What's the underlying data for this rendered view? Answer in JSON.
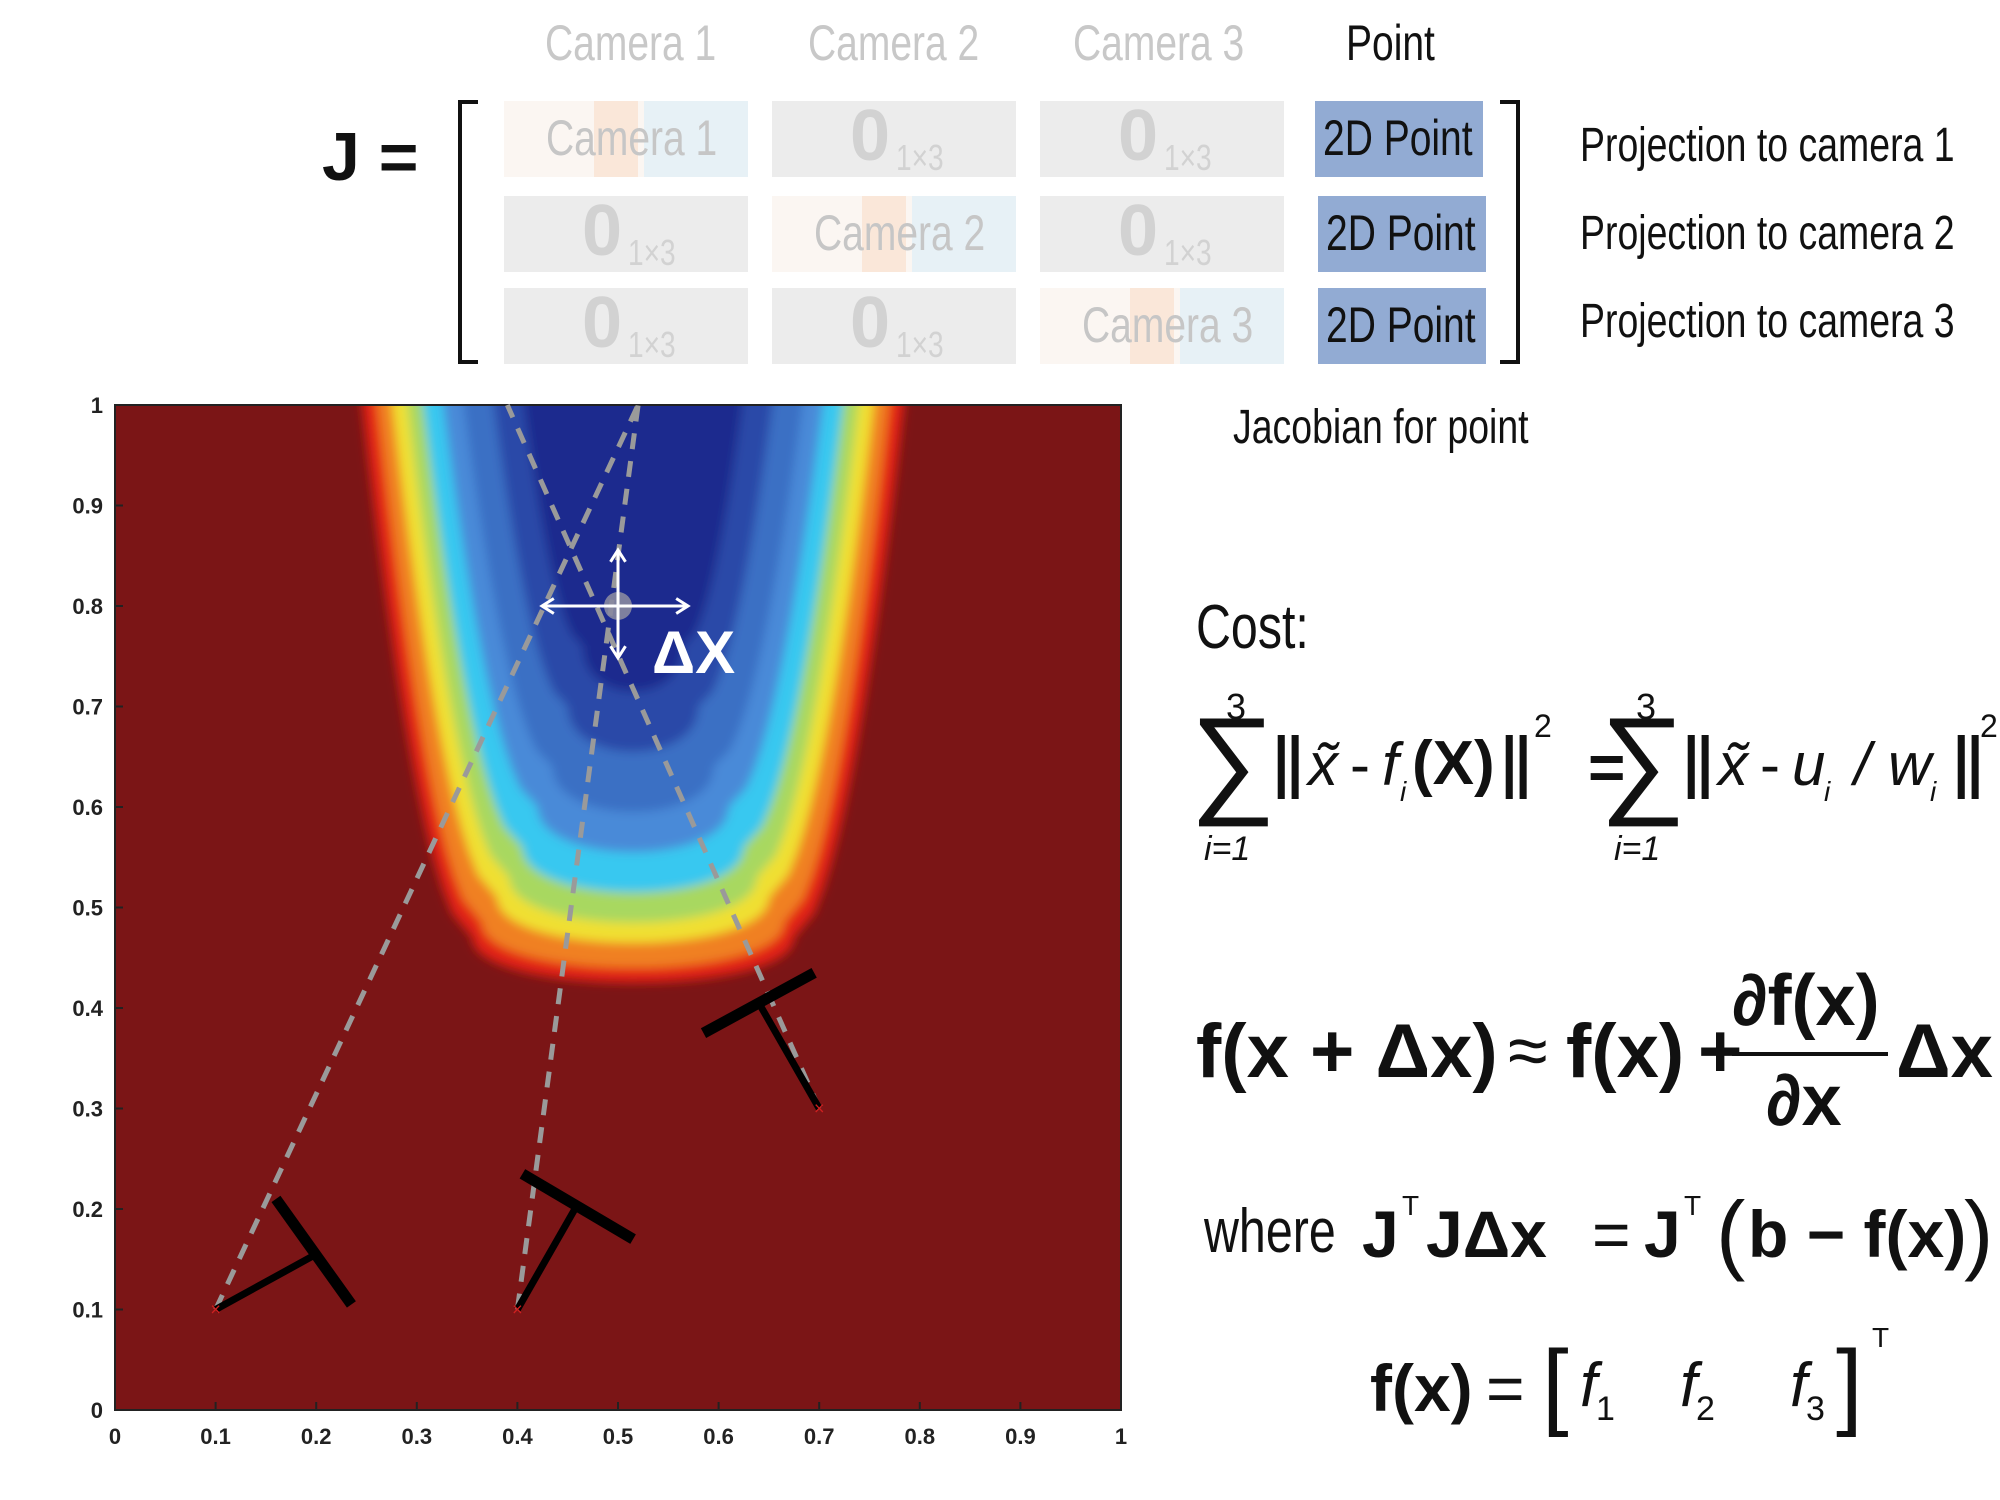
{
  "matrix": {
    "lhs": "J =",
    "col_headers": [
      "Camera 1",
      "Camera 2",
      "Camera 3",
      "Point"
    ],
    "camera_cells": [
      "Camera 1",
      "Camera 2",
      "Camera 3"
    ],
    "zero": "0",
    "zero_sub": "1×3",
    "point_cell": "2D Point",
    "row_labels": [
      "Projection to camera 1",
      "Projection to camera 2",
      "Projection to camera 3"
    ],
    "caption": "Jacobian for point"
  },
  "plot": {
    "x_ticks": [
      "0",
      "0.1",
      "0.2",
      "0.3",
      "0.4",
      "0.5",
      "0.6",
      "0.7",
      "0.8",
      "0.9",
      "1"
    ],
    "y_ticks": [
      "0",
      "0.1",
      "0.2",
      "0.3",
      "0.4",
      "0.5",
      "0.6",
      "0.7",
      "0.8",
      "0.9",
      "1"
    ],
    "xlim": [
      0,
      1
    ],
    "ylim": [
      0,
      1
    ],
    "point": [
      0.5,
      0.8
    ],
    "cameras": [
      [
        0.1,
        0.1
      ],
      [
        0.4,
        0.1
      ],
      [
        0.7,
        0.3
      ]
    ],
    "delta_label": "ΔX",
    "colors": {
      "background": "#7b1516",
      "deep": "#1c2b8e",
      "mid": "#3b6fc4",
      "cyan": "#38c8f0",
      "yellow": "#f0e030",
      "orange": "#f08020",
      "red": "#e22418"
    }
  },
  "equations": {
    "cost_label": "Cost:",
    "sum_upper": "3",
    "sum_lower": "i=1",
    "x_tilde": "x̃",
    "minus": "-",
    "f": "f",
    "i": "i",
    "X_bold": "(X)",
    "sq": "2",
    "equals": "=",
    "u": "u",
    "slash": "/",
    "w": "w",
    "taylor_lhs": "f(x + Δx)",
    "approx": "≈",
    "taylor_fx": "f(x)",
    "plus": "+",
    "partial_num": "∂f(x)",
    "partial_den": "∂x",
    "delta_x": "Δx",
    "where": "where",
    "J": "J",
    "T": "T",
    "JDx": "JΔx",
    "b_minus_fx": "b − f(x)",
    "fx": "f(x)",
    "f1": "f",
    "sub1": "1",
    "sub2": "2",
    "sub3": "3"
  }
}
